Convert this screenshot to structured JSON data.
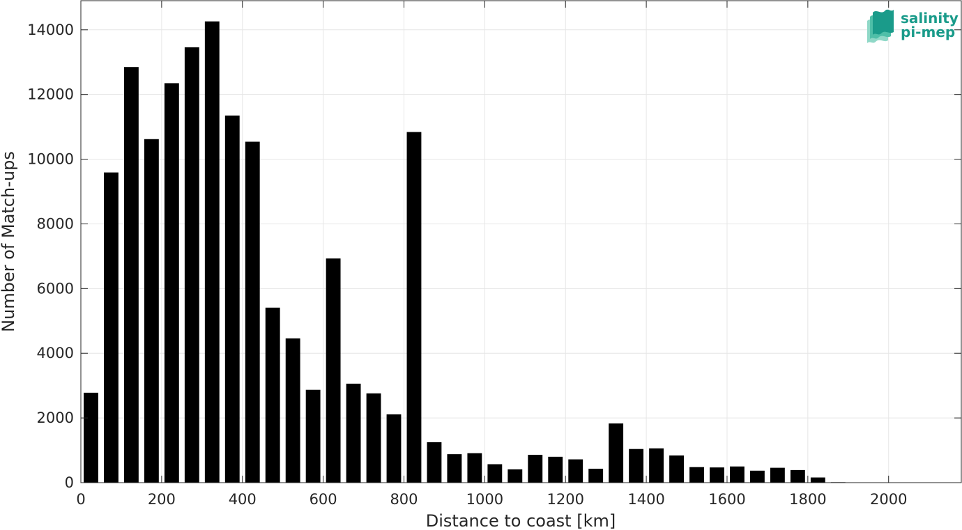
{
  "chart_data": {
    "type": "bar",
    "x": [
      25,
      75,
      125,
      175,
      225,
      275,
      325,
      375,
      425,
      475,
      525,
      575,
      625,
      675,
      725,
      775,
      825,
      875,
      925,
      975,
      1025,
      1075,
      1125,
      1175,
      1225,
      1275,
      1325,
      1375,
      1425,
      1475,
      1525,
      1575,
      1625,
      1675,
      1725,
      1775,
      1825,
      1875,
      1925,
      1975,
      2025,
      2075,
      2125
    ],
    "values": [
      2780,
      9590,
      12850,
      10620,
      12350,
      13460,
      14260,
      11350,
      10540,
      5410,
      4460,
      2870,
      6930,
      3060,
      2760,
      2110,
      10840,
      1250,
      880,
      910,
      570,
      410,
      860,
      800,
      720,
      430,
      1830,
      1040,
      1060,
      840,
      480,
      470,
      500,
      370,
      460,
      390,
      160,
      15,
      0,
      0,
      0,
      0,
      0
    ],
    "bar_width": 36,
    "xlabel": "Distance to coast [km]",
    "ylabel": "Number of Match-ups",
    "title": "",
    "xlim": [
      0,
      2180
    ],
    "ylim": [
      0,
      14900
    ],
    "xticks": [
      0,
      200,
      400,
      600,
      800,
      1000,
      1200,
      1400,
      1600,
      1800,
      2000
    ],
    "yticks": [
      0,
      2000,
      4000,
      6000,
      8000,
      10000,
      12000,
      14000
    ],
    "grid": true,
    "bar_color": "#000000"
  },
  "logo": {
    "line1": "salinity",
    "line2": "pi-mep",
    "color": "#1a9b8a"
  }
}
